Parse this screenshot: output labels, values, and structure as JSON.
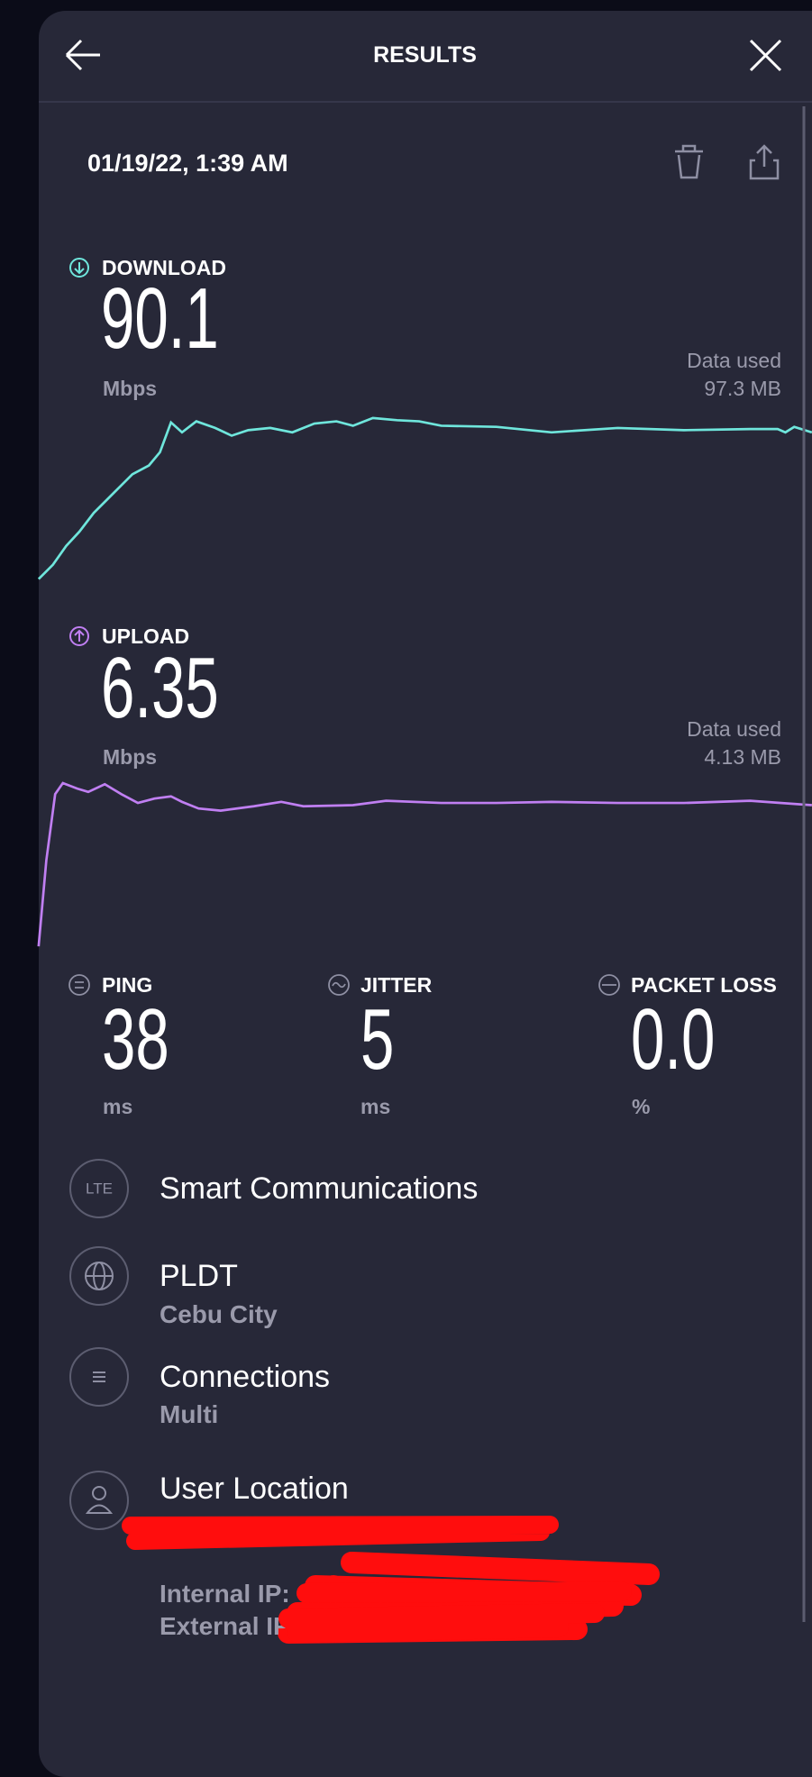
{
  "header": {
    "title": "RESULTS"
  },
  "date": "01/19/22, 1:39 AM",
  "download": {
    "label": "DOWNLOAD",
    "value": "90.1",
    "unit": "Mbps",
    "data_used_label": "Data used",
    "data_used": "97.3 MB"
  },
  "upload": {
    "label": "UPLOAD",
    "value": "6.35",
    "unit": "Mbps",
    "data_used_label": "Data used",
    "data_used": "4.13 MB"
  },
  "metrics": [
    {
      "label": "PING",
      "value": "38",
      "unit": "ms"
    },
    {
      "label": "JITTER",
      "value": "5",
      "unit": "ms"
    },
    {
      "label": "PACKET LOSS",
      "value": "0.0",
      "unit": "%"
    }
  ],
  "info": [
    {
      "icon": "LTE",
      "title": "Smart Communications"
    },
    {
      "title": "PLDT",
      "subtitle": "Cebu City"
    },
    {
      "title": "Connections",
      "subtitle": "Multi"
    },
    {
      "title": "User Location"
    }
  ],
  "ip": {
    "internal": "Internal IP:",
    "external": "External IP"
  }
}
